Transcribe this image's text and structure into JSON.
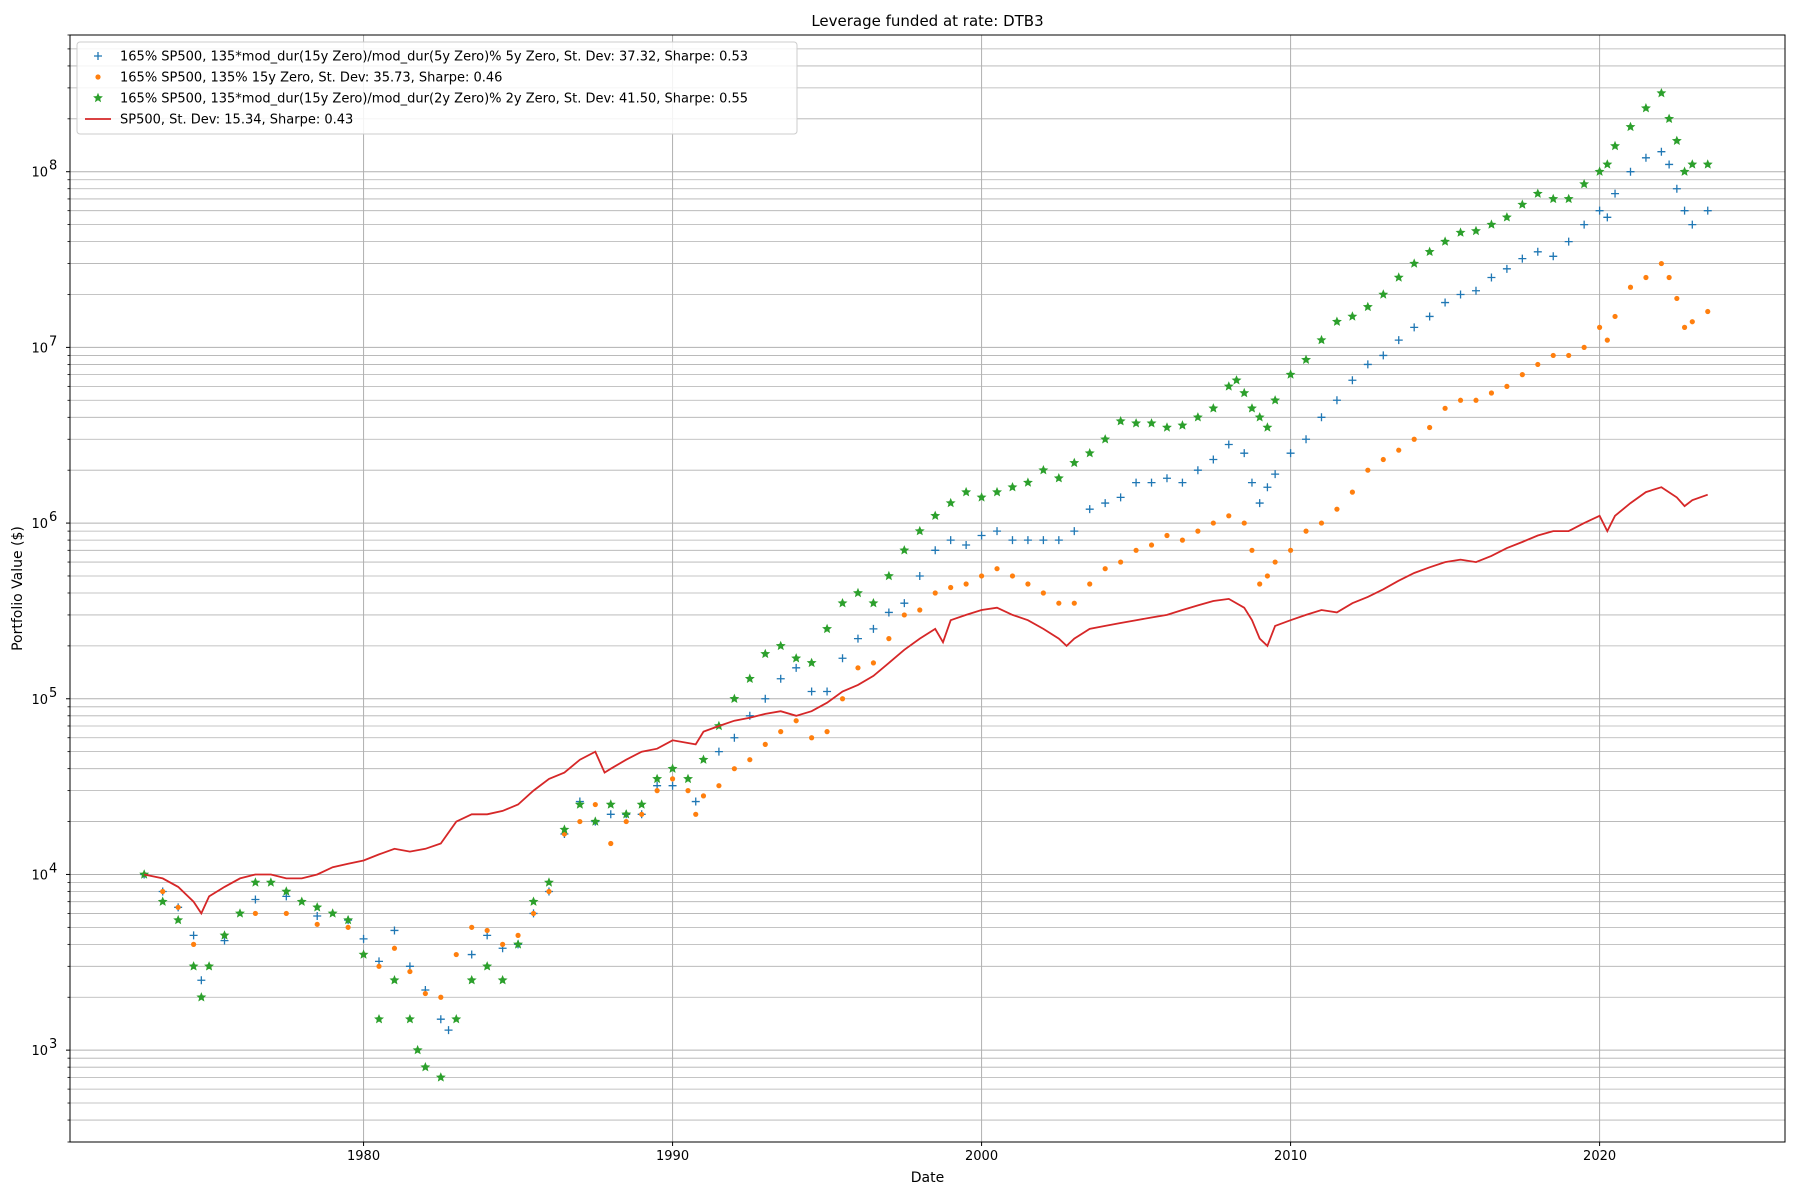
{
  "chart_data": {
    "type": "scatter",
    "title": "Leverage funded at rate: DTB3",
    "xlabel": "Date",
    "ylabel": "Portfolio Value ($)",
    "yscale": "log",
    "xlim": [
      1970.5,
      2026.0
    ],
    "ylim": [
      300,
      600000000
    ],
    "x_ticks": [
      1980,
      1990,
      2000,
      2010,
      2020
    ],
    "x_tick_labels": [
      "1980",
      "1990",
      "2000",
      "2010",
      "2020"
    ],
    "y_ticks": [
      1000,
      10000,
      100000,
      1000000,
      10000000,
      100000000
    ],
    "y_tick_labels": [
      {
        "base": "10",
        "exp": "3"
      },
      {
        "base": "10",
        "exp": "4"
      },
      {
        "base": "10",
        "exp": "5"
      },
      {
        "base": "10",
        "exp": "6"
      },
      {
        "base": "10",
        "exp": "7"
      },
      {
        "base": "10",
        "exp": "8"
      }
    ],
    "grid": "major and minor (y), major (x)",
    "legend_position": "top-left",
    "series": [
      {
        "name": "165% SP500, 135*mod_dur(15y Zero)/mod_dur(5y Zero)% 5y Zero, St. Dev: 37.32, Sharpe: 0.53",
        "marker": "plus",
        "color": "#1f77b4",
        "x": [
          1972.9,
          1973.5,
          1974.0,
          1974.5,
          1974.75,
          1975.5,
          1976.5,
          1977.5,
          1978.5,
          1979.5,
          1980.0,
          1980.5,
          1981.0,
          1981.5,
          1982.0,
          1982.5,
          1982.75,
          1983.5,
          1984.0,
          1984.5,
          1985.0,
          1985.5,
          1986.0,
          1986.5,
          1987.0,
          1987.5,
          1988.0,
          1988.5,
          1989.0,
          1989.5,
          1990.0,
          1990.75,
          1991.5,
          1992.0,
          1992.5,
          1993.0,
          1993.5,
          1994.0,
          1994.5,
          1995.0,
          1995.5,
          1996.0,
          1996.5,
          1997.0,
          1997.5,
          1998.0,
          1998.5,
          1999.0,
          1999.5,
          2000.0,
          2000.5,
          2001.0,
          2001.5,
          2002.0,
          2002.5,
          2003.0,
          2003.5,
          2004.0,
          2004.5,
          2005.0,
          2005.5,
          2006.0,
          2006.5,
          2007.0,
          2007.5,
          2008.0,
          2008.5,
          2008.75,
          2009.0,
          2009.25,
          2009.5,
          2010.0,
          2010.5,
          2011.0,
          2011.5,
          2012.0,
          2012.5,
          2013.0,
          2013.5,
          2014.0,
          2014.5,
          2015.0,
          2015.5,
          2016.0,
          2016.5,
          2017.0,
          2017.5,
          2018.0,
          2018.5,
          2019.0,
          2019.5,
          2020.0,
          2020.25,
          2020.5,
          2021.0,
          2021.5,
          2022.0,
          2022.25,
          2022.5,
          2022.75,
          2023.0,
          2023.5
        ],
        "y": [
          10000,
          8000,
          6500,
          4500,
          2500,
          4200,
          7200,
          7500,
          5800,
          5500,
          4300,
          3200,
          4800,
          3000,
          2200,
          1500,
          1300,
          3500,
          4500,
          3800,
          4000,
          6000,
          8000,
          17000,
          26000,
          20000,
          22000,
          22000,
          22000,
          32000,
          32000,
          26000,
          50000,
          60000,
          80000,
          100000,
          130000,
          150000,
          110000,
          110000,
          170000,
          220000,
          250000,
          310000,
          350000,
          500000,
          700000,
          800000,
          750000,
          850000,
          900000,
          800000,
          800000,
          800000,
          800000,
          900000,
          1200000,
          1300000,
          1400000,
          1700000,
          1700000,
          1800000,
          1700000,
          2000000,
          2300000,
          2800000,
          2500000,
          1700000,
          1300000,
          1600000,
          1900000,
          2500000,
          3000000,
          4000000,
          5000000,
          6500000,
          8000000,
          9000000,
          11000000,
          13000000,
          15000000,
          18000000,
          20000000,
          21000000,
          25000000,
          28000000,
          32000000,
          35000000,
          33000000,
          40000000,
          50000000,
          60000000,
          55000000,
          75000000,
          100000000,
          120000000,
          130000000,
          110000000,
          80000000,
          60000000,
          50000000,
          60000000
        ]
      },
      {
        "name": "165% SP500, 135% 15y Zero, St. Dev: 35.73, Sharpe: 0.46",
        "marker": "dot",
        "color": "#ff7f0e",
        "x": [
          1972.9,
          1973.5,
          1974.0,
          1974.5,
          1975.0,
          1975.5,
          1976.5,
          1977.5,
          1978.5,
          1979.5,
          1980.0,
          1980.5,
          1981.0,
          1981.5,
          1982.0,
          1982.5,
          1983.0,
          1983.5,
          1984.0,
          1984.5,
          1985.0,
          1985.5,
          1986.0,
          1986.5,
          1987.0,
          1987.5,
          1988.0,
          1988.5,
          1989.0,
          1989.5,
          1990.0,
          1990.5,
          1990.75,
          1991.0,
          1991.5,
          1992.0,
          1992.5,
          1993.0,
          1993.5,
          1994.0,
          1994.5,
          1995.0,
          1995.5,
          1996.0,
          1996.5,
          1997.0,
          1997.5,
          1998.0,
          1998.5,
          1999.0,
          1999.5,
          2000.0,
          2000.5,
          2001.0,
          2001.5,
          2002.0,
          2002.5,
          2003.0,
          2003.5,
          2004.0,
          2004.5,
          2005.0,
          2005.5,
          2006.0,
          2006.5,
          2007.0,
          2007.5,
          2008.0,
          2008.5,
          2008.75,
          2009.0,
          2009.25,
          2009.5,
          2010.0,
          2010.5,
          2011.0,
          2011.5,
          2012.0,
          2012.5,
          2013.0,
          2013.5,
          2014.0,
          2014.5,
          2015.0,
          2015.5,
          2016.0,
          2016.5,
          2017.0,
          2017.5,
          2018.0,
          2018.5,
          2019.0,
          2019.5,
          2020.0,
          2020.25,
          2020.5,
          2021.0,
          2021.5,
          2022.0,
          2022.25,
          2022.5,
          2022.75,
          2023.0,
          2023.5
        ],
        "y": [
          10000,
          8000,
          6500,
          4000,
          3000,
          4500,
          6000,
          6000,
          5200,
          5000,
          3500,
          3000,
          3800,
          2800,
          2100,
          2000,
          3500,
          5000,
          4800,
          4000,
          4500,
          6000,
          8000,
          17000,
          20000,
          25000,
          15000,
          20000,
          22000,
          30000,
          35000,
          30000,
          22000,
          28000,
          32000,
          40000,
          45000,
          55000,
          65000,
          75000,
          60000,
          65000,
          100000,
          150000,
          160000,
          220000,
          300000,
          320000,
          400000,
          430000,
          450000,
          500000,
          550000,
          500000,
          450000,
          400000,
          350000,
          350000,
          450000,
          550000,
          600000,
          700000,
          750000,
          850000,
          800000,
          900000,
          1000000,
          1100000,
          1000000,
          700000,
          450000,
          500000,
          600000,
          700000,
          900000,
          1000000,
          1200000,
          1500000,
          2000000,
          2300000,
          2600000,
          3000000,
          3500000,
          4500000,
          5000000,
          5000000,
          5500000,
          6000000,
          7000000,
          8000000,
          9000000,
          9000000,
          10000000,
          13000000,
          11000000,
          15000000,
          22000000,
          25000000,
          30000000,
          25000000,
          19000000,
          13000000,
          14000000,
          16000000
        ]
      },
      {
        "name": "165% SP500, 135*mod_dur(15y Zero)/mod_dur(2y Zero)% 2y Zero, St. Dev: 41.50, Sharpe: 0.55",
        "marker": "star",
        "color": "#2ca02c",
        "x": [
          1972.9,
          1973.5,
          1974.0,
          1974.5,
          1974.75,
          1975.0,
          1975.5,
          1976.0,
          1976.5,
          1977.0,
          1977.5,
          1978.0,
          1978.5,
          1979.0,
          1979.5,
          1980.0,
          1980.5,
          1981.0,
          1981.5,
          1981.75,
          1982.0,
          1982.5,
          1983.0,
          1983.5,
          1984.0,
          1984.5,
          1985.0,
          1985.5,
          1986.0,
          1986.5,
          1987.0,
          1987.5,
          1988.0,
          1988.5,
          1989.0,
          1989.5,
          1990.0,
          1990.5,
          1991.0,
          1991.5,
          1992.0,
          1992.5,
          1993.0,
          1993.5,
          1994.0,
          1994.5,
          1995.0,
          1995.5,
          1996.0,
          1996.5,
          1997.0,
          1997.5,
          1998.0,
          1998.5,
          1999.0,
          1999.5,
          2000.0,
          2000.5,
          2001.0,
          2001.5,
          2002.0,
          2002.5,
          2003.0,
          2003.5,
          2004.0,
          2004.5,
          2005.0,
          2005.5,
          2006.0,
          2006.5,
          2007.0,
          2007.5,
          2008.0,
          2008.25,
          2008.5,
          2008.75,
          2009.0,
          2009.25,
          2009.5,
          2010.0,
          2010.5,
          2011.0,
          2011.5,
          2012.0,
          2012.5,
          2013.0,
          2013.5,
          2014.0,
          2014.5,
          2015.0,
          2015.5,
          2016.0,
          2016.5,
          2017.0,
          2017.5,
          2018.0,
          2018.5,
          2019.0,
          2019.5,
          2020.0,
          2020.25,
          2020.5,
          2021.0,
          2021.5,
          2022.0,
          2022.25,
          2022.5,
          2022.75,
          2023.0,
          2023.5
        ],
        "y": [
          10000,
          7000,
          5500,
          3000,
          2000,
          3000,
          4500,
          6000,
          9000,
          9000,
          8000,
          7000,
          6500,
          6000,
          5500,
          3500,
          1500,
          2500,
          1500,
          1000,
          800,
          700,
          1500,
          2500,
          3000,
          2500,
          4000,
          7000,
          9000,
          18000,
          25000,
          20000,
          25000,
          22000,
          25000,
          35000,
          40000,
          35000,
          45000,
          70000,
          100000,
          130000,
          180000,
          200000,
          170000,
          160000,
          250000,
          350000,
          400000,
          350000,
          500000,
          700000,
          900000,
          1100000,
          1300000,
          1500000,
          1400000,
          1500000,
          1600000,
          1700000,
          2000000,
          1800000,
          2200000,
          2500000,
          3000000,
          3800000,
          3700000,
          3700000,
          3500000,
          3600000,
          4000000,
          4500000,
          6000000,
          6500000,
          5500000,
          4500000,
          4000000,
          3500000,
          5000000,
          7000000,
          8500000,
          11000000,
          14000000,
          15000000,
          17000000,
          20000000,
          25000000,
          30000000,
          35000000,
          40000000,
          45000000,
          46000000,
          50000000,
          55000000,
          65000000,
          75000000,
          70000000,
          70000000,
          85000000,
          100000000,
          110000000,
          140000000,
          180000000,
          230000000,
          280000000,
          200000000,
          150000000,
          100000000,
          110000000,
          110000000
        ]
      },
      {
        "name": "SP500, St. Dev: 15.34, Sharpe: 0.43",
        "marker": "line",
        "color": "#d62728",
        "x": [
          1972.9,
          1973.5,
          1974.0,
          1974.5,
          1974.75,
          1975.0,
          1975.5,
          1976.0,
          1976.5,
          1977.0,
          1977.5,
          1978.0,
          1978.5,
          1979.0,
          1979.5,
          1980.0,
          1980.5,
          1981.0,
          1981.5,
          1982.0,
          1982.5,
          1983.0,
          1983.5,
          1984.0,
          1984.5,
          1985.0,
          1985.5,
          1986.0,
          1986.5,
          1987.0,
          1987.5,
          1987.8,
          1988.0,
          1988.5,
          1989.0,
          1989.5,
          1990.0,
          1990.75,
          1991.0,
          1991.5,
          1992.0,
          1992.5,
          1993.0,
          1993.5,
          1994.0,
          1994.5,
          1995.0,
          1995.5,
          1996.0,
          1996.5,
          1997.0,
          1997.5,
          1998.0,
          1998.5,
          1998.75,
          1999.0,
          1999.5,
          2000.0,
          2000.5,
          2001.0,
          2001.5,
          2002.0,
          2002.5,
          2002.75,
          2003.0,
          2003.5,
          2004.0,
          2004.5,
          2005.0,
          2005.5,
          2006.0,
          2006.5,
          2007.0,
          2007.5,
          2008.0,
          2008.5,
          2008.75,
          2009.0,
          2009.25,
          2009.5,
          2010.0,
          2010.5,
          2011.0,
          2011.5,
          2012.0,
          2012.5,
          2013.0,
          2013.5,
          2014.0,
          2014.5,
          2015.0,
          2015.5,
          2016.0,
          2016.5,
          2017.0,
          2017.5,
          2018.0,
          2018.5,
          2019.0,
          2019.5,
          2020.0,
          2020.25,
          2020.5,
          2021.0,
          2021.5,
          2022.0,
          2022.5,
          2022.75,
          2023.0,
          2023.5
        ],
        "y": [
          10000,
          9500,
          8500,
          7000,
          6000,
          7500,
          8500,
          9500,
          10000,
          10000,
          9500,
          9500,
          10000,
          11000,
          11500,
          12000,
          13000,
          14000,
          13500,
          14000,
          15000,
          20000,
          22000,
          22000,
          23000,
          25000,
          30000,
          35000,
          38000,
          45000,
          50000,
          38000,
          40000,
          45000,
          50000,
          52000,
          58000,
          55000,
          65000,
          70000,
          75000,
          78000,
          82000,
          85000,
          80000,
          85000,
          95000,
          110000,
          120000,
          135000,
          160000,
          190000,
          220000,
          250000,
          210000,
          280000,
          300000,
          320000,
          330000,
          300000,
          280000,
          250000,
          220000,
          200000,
          220000,
          250000,
          260000,
          270000,
          280000,
          290000,
          300000,
          320000,
          340000,
          360000,
          370000,
          330000,
          280000,
          220000,
          200000,
          260000,
          280000,
          300000,
          320000,
          310000,
          350000,
          380000,
          420000,
          470000,
          520000,
          560000,
          600000,
          620000,
          600000,
          650000,
          720000,
          780000,
          850000,
          900000,
          900000,
          1000000,
          1100000,
          900000,
          1100000,
          1300000,
          1500000,
          1600000,
          1400000,
          1250000,
          1350000,
          1450000
        ]
      }
    ]
  }
}
